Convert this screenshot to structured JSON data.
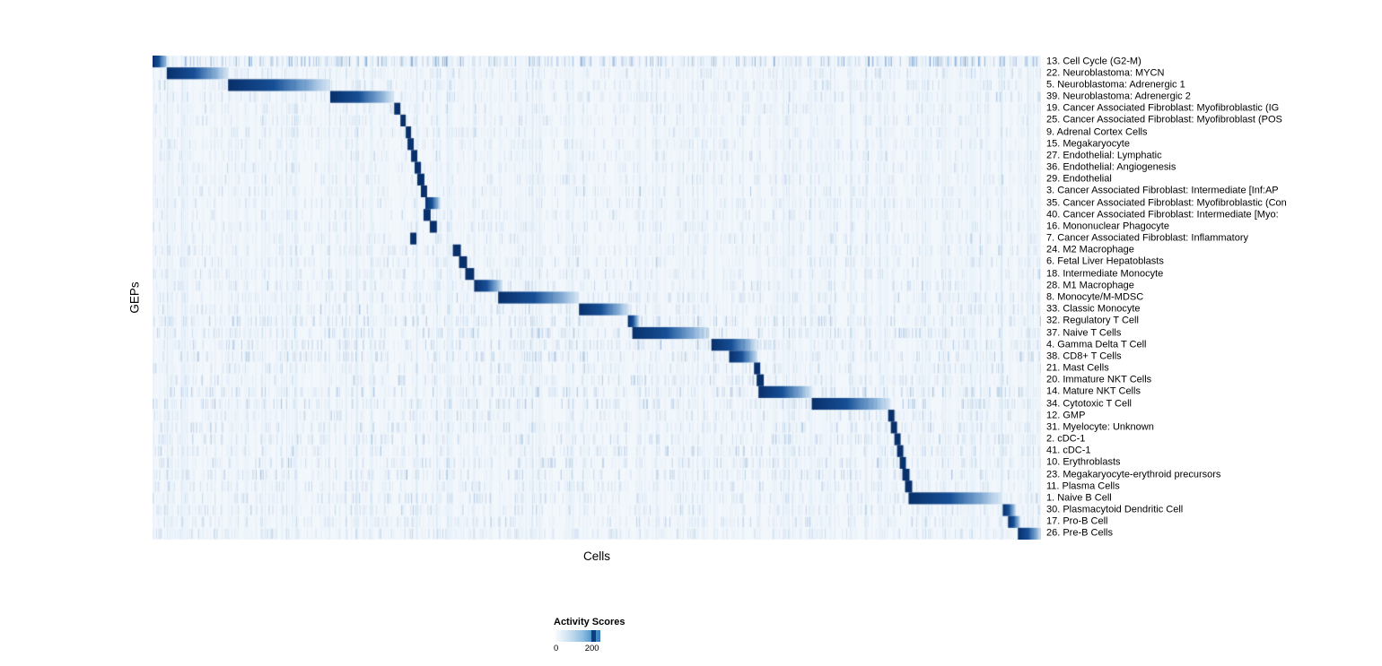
{
  "chart_data": {
    "type": "heatmap",
    "title": "",
    "xlabel": "Cells",
    "ylabel": "GEPs",
    "x_tick_labels": [],
    "value_range": [
      0,
      200
    ],
    "legend": {
      "title": "Activity Scores",
      "tick_labels": [
        "0",
        "200"
      ],
      "tick_values": [
        0,
        200
      ]
    },
    "colormap": {
      "name": "Blues",
      "low": "#f2f7fc",
      "mid": "#6baed6",
      "high": "#08306b"
    },
    "layout": {
      "legend_position": "bottom",
      "row_labels_position": "right",
      "grid": false
    },
    "rows": [
      {
        "label": "13. Cell Cycle (G2-M)",
        "block_start": 0.0,
        "block_end": 0.016,
        "value": 200,
        "speckle": 0.55
      },
      {
        "label": "22. Neuroblastoma: MYCN",
        "block_start": 0.016,
        "block_end": 0.085,
        "value": 200,
        "speckle": 0.12
      },
      {
        "label": "5. Neuroblastoma: Adrenergic 1",
        "block_start": 0.085,
        "block_end": 0.2,
        "value": 200,
        "speckle": 0.12
      },
      {
        "label": "39. Neuroblastoma: Adrenergic 2",
        "block_start": 0.2,
        "block_end": 0.272,
        "value": 200,
        "speckle": 0.12
      },
      {
        "label": "19. Cancer Associated Fibroblast: Myofibroblastic (IG",
        "block_start": 0.272,
        "block_end": 0.279,
        "value": 200,
        "speckle": 0.06
      },
      {
        "label": "25. Cancer Associated Fibroblast: Myofibroblast (POS",
        "block_start": 0.279,
        "block_end": 0.285,
        "value": 200,
        "speckle": 0.06
      },
      {
        "label": "9. Adrenal Cortex Cells",
        "block_start": 0.285,
        "block_end": 0.291,
        "value": 200,
        "speckle": 0.06
      },
      {
        "label": "15. Megakaryocyte",
        "block_start": 0.287,
        "block_end": 0.294,
        "value": 200,
        "speckle": 0.06
      },
      {
        "label": "27. Endothelial: Lymphatic",
        "block_start": 0.291,
        "block_end": 0.298,
        "value": 200,
        "speckle": 0.06
      },
      {
        "label": "36. Endothelial: Angiogenesis",
        "block_start": 0.295,
        "block_end": 0.302,
        "value": 200,
        "speckle": 0.06
      },
      {
        "label": "29. Endothelial",
        "block_start": 0.298,
        "block_end": 0.306,
        "value": 200,
        "speckle": 0.06
      },
      {
        "label": "3. Cancer Associated Fibroblast: Intermediate [Inf:AP",
        "block_start": 0.302,
        "block_end": 0.309,
        "value": 200,
        "speckle": 0.06
      },
      {
        "label": "35. Cancer Associated Fibroblast: Myofibroblastic (Con",
        "block_start": 0.307,
        "block_end": 0.324,
        "value": 200,
        "speckle": 0.06
      },
      {
        "label": "40. Cancer Associated Fibroblast: Intermediate [Myo:",
        "block_start": 0.305,
        "block_end": 0.313,
        "value": 200,
        "speckle": 0.06
      },
      {
        "label": "16. Mononuclear Phagocyte",
        "block_start": 0.312,
        "block_end": 0.32,
        "value": 200,
        "speckle": 0.08
      },
      {
        "label": "7. Cancer Associated Fibroblast: Inflammatory",
        "block_start": 0.29,
        "block_end": 0.297,
        "value": 200,
        "speckle": 0.06
      },
      {
        "label": "24. M2 Macrophage",
        "block_start": 0.338,
        "block_end": 0.347,
        "value": 200,
        "speckle": 0.1
      },
      {
        "label": "6. Fetal Liver Hepatoblasts",
        "block_start": 0.345,
        "block_end": 0.354,
        "value": 200,
        "speckle": 0.08
      },
      {
        "label": "18. Intermediate Monocyte",
        "block_start": 0.352,
        "block_end": 0.362,
        "value": 200,
        "speckle": 0.1
      },
      {
        "label": "28. M1 Macrophage",
        "block_start": 0.362,
        "block_end": 0.394,
        "value": 200,
        "speckle": 0.12
      },
      {
        "label": "8. Monocyte/M-MDSC",
        "block_start": 0.389,
        "block_end": 0.48,
        "value": 200,
        "speckle": 0.15
      },
      {
        "label": "33. Classic Monocyte",
        "block_start": 0.48,
        "block_end": 0.536,
        "value": 200,
        "speckle": 0.12
      },
      {
        "label": "32. Regulatory T Cell",
        "block_start": 0.535,
        "block_end": 0.548,
        "value": 200,
        "speckle": 0.25
      },
      {
        "label": "37. Naive T Cells",
        "block_start": 0.54,
        "block_end": 0.626,
        "value": 200,
        "speckle": 0.25
      },
      {
        "label": "4. Gamma Delta T Cell",
        "block_start": 0.629,
        "block_end": 0.68,
        "value": 200,
        "speckle": 0.22
      },
      {
        "label": "38. CD8+ T Cells",
        "block_start": 0.649,
        "block_end": 0.681,
        "value": 200,
        "speckle": 0.22
      },
      {
        "label": "21. Mast Cells",
        "block_start": 0.677,
        "block_end": 0.684,
        "value": 200,
        "speckle": 0.12
      },
      {
        "label": "20. Immature NKT Cells",
        "block_start": 0.68,
        "block_end": 0.688,
        "value": 200,
        "speckle": 0.15
      },
      {
        "label": "14. Mature NKT Cells",
        "block_start": 0.682,
        "block_end": 0.742,
        "value": 200,
        "speckle": 0.25
      },
      {
        "label": "34. Cytotoxic T Cell",
        "block_start": 0.742,
        "block_end": 0.83,
        "value": 200,
        "speckle": 0.25
      },
      {
        "label": "12. GMP",
        "block_start": 0.828,
        "block_end": 0.835,
        "value": 200,
        "speckle": 0.12
      },
      {
        "label": "31. Myelocyte: Unknown",
        "block_start": 0.831,
        "block_end": 0.838,
        "value": 200,
        "speckle": 0.18
      },
      {
        "label": "2. cDC-1",
        "block_start": 0.835,
        "block_end": 0.842,
        "value": 200,
        "speckle": 0.18
      },
      {
        "label": "41. cDC-1",
        "block_start": 0.838,
        "block_end": 0.845,
        "value": 200,
        "speckle": 0.15
      },
      {
        "label": "10. Erythroblasts",
        "block_start": 0.841,
        "block_end": 0.848,
        "value": 200,
        "speckle": 0.18
      },
      {
        "label": "23. Megakaryocyte-erythroid precursors",
        "block_start": 0.844,
        "block_end": 0.852,
        "value": 200,
        "speckle": 0.18
      },
      {
        "label": "11. Plasma Cells",
        "block_start": 0.847,
        "block_end": 0.855,
        "value": 200,
        "speckle": 0.12
      },
      {
        "label": "1. Naive B Cell",
        "block_start": 0.851,
        "block_end": 0.955,
        "value": 200,
        "speckle": 0.15
      },
      {
        "label": "30. Plasmacytoid Dendritic Cell",
        "block_start": 0.957,
        "block_end": 0.972,
        "value": 200,
        "speckle": 0.12
      },
      {
        "label": "17. Pro-B Cell",
        "block_start": 0.963,
        "block_end": 0.977,
        "value": 200,
        "speckle": 0.12
      },
      {
        "label": "26. Pre-B Cells",
        "block_start": 0.974,
        "block_end": 1.0,
        "value": 200,
        "speckle": 0.12
      }
    ]
  }
}
